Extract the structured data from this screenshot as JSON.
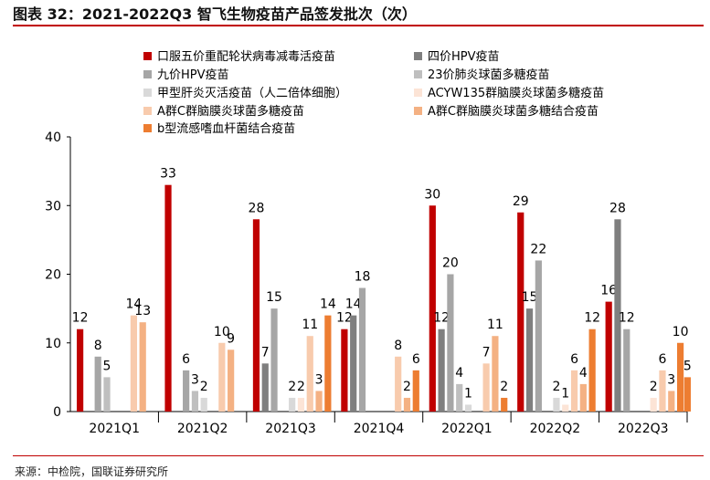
{
  "header": {
    "title": "图表 32：2021-2022Q3 智飞生物疫苗产品签发批次（次）"
  },
  "footer": {
    "source": "来源：中检院，国联证券研究所"
  },
  "colors": {
    "title_rule": "#c00000",
    "axis": "#000000"
  },
  "chart_data": {
    "type": "bar",
    "title": "",
    "xlabel": "",
    "ylabel": "",
    "ylim": [
      0,
      40
    ],
    "yticks": [
      0,
      10,
      20,
      30,
      40
    ],
    "grid": false,
    "legend_position": "top",
    "categories": [
      "2021Q1",
      "2021Q2",
      "2021Q3",
      "2021Q4",
      "2022Q1",
      "2022Q2",
      "2022Q3"
    ],
    "series": [
      {
        "name": "口服五价重配轮状病毒减毒活疫苗",
        "color": "#c00000",
        "values": [
          12,
          33,
          28,
          12,
          30,
          29,
          16
        ]
      },
      {
        "name": "四价HPV疫苗",
        "color": "#7f7f7f",
        "values": [
          0,
          0,
          7,
          14,
          12,
          15,
          28
        ]
      },
      {
        "name": "九价HPV疫苗",
        "color": "#a6a6a6",
        "values": [
          8,
          6,
          15,
          18,
          20,
          22,
          12
        ]
      },
      {
        "name": "23价肺炎球菌多糖疫苗",
        "color": "#bfbfbf",
        "values": [
          5,
          3,
          0,
          0,
          4,
          0,
          0
        ]
      },
      {
        "name": "甲型肝炎灭活疫苗（人二倍体细胞）",
        "color": "#d9d9d9",
        "values": [
          0,
          2,
          2,
          0,
          1,
          2,
          0
        ]
      },
      {
        "name": "ACYW135群脑膜炎球菌多糖疫苗",
        "color": "#fce4d6",
        "values": [
          0,
          0,
          2,
          0,
          0,
          1,
          2
        ]
      },
      {
        "name": "A群C群脑膜炎球菌多糖疫苗",
        "color": "#f8cbad",
        "values": [
          14,
          10,
          11,
          8,
          7,
          6,
          6
        ]
      },
      {
        "name": "A群C群脑膜炎球菌多糖结合疫苗",
        "color": "#f4b183",
        "values": [
          13,
          9,
          3,
          2,
          11,
          4,
          3
        ]
      },
      {
        "name": "b型流感嗜血杆菌结合疫苗",
        "color": "#ed7d31",
        "values": [
          0,
          0,
          14,
          6,
          2,
          12,
          10
        ]
      }
    ],
    "extra_series": [
      {
        "values": [
          0,
          0,
          0,
          0,
          0,
          0,
          5
        ],
        "color": "#ed7d31"
      }
    ]
  }
}
